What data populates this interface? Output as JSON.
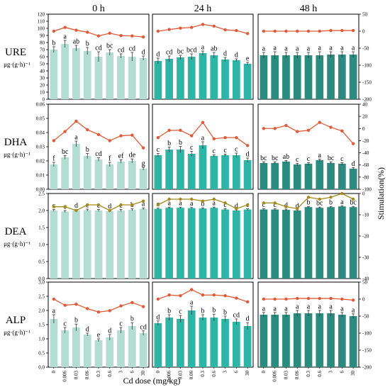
{
  "chart_data": {
    "type": "bar",
    "columns": [
      "0 h",
      "24 h",
      "48 h"
    ],
    "x_categories": [
      "0",
      "0.006",
      "0.03",
      "0.06",
      "0.3",
      "0.6",
      "3",
      "6",
      "30"
    ],
    "xlabel": "Cd dose (mg/kg)",
    "right_axis_label": "Stimulation(%)",
    "colors": [
      "#b4ddd2",
      "#2fb5a5",
      "#2a8c80"
    ],
    "line_colors": {
      "red": "#e05a38",
      "olive": "#a58a1e"
    },
    "rows": [
      {
        "name": "URE",
        "unit": "μg·(g·h)⁻¹",
        "left_ticks": [
          "0",
          "10",
          "20",
          "30",
          "40",
          "50",
          "60",
          "70",
          "80",
          "90",
          "100",
          "110",
          "120"
        ],
        "right_ticks": [
          "50",
          "0",
          "-50",
          "-100",
          "-150",
          "-200"
        ],
        "ylim": [
          0,
          120
        ],
        "y2lim": [
          -200,
          50
        ],
        "line_color": "red",
        "panels": [
          {
            "values": [
              70,
              78,
              72,
              68,
              60,
              66,
              61,
              60,
              58
            ],
            "errors": [
              4,
              5,
              4,
              5,
              7,
              4,
              3,
              6,
              3
            ],
            "letters": [
              "b",
              "a",
              "ab",
              "b",
              "cd",
              "bc",
              "cd",
              "cd",
              "d"
            ],
            "stimulation": [
              0,
              11,
              3,
              -3,
              -14,
              -6,
              -13,
              -14,
              -17
            ]
          },
          {
            "values": [
              54,
              57,
              59,
              60,
              65,
              62,
              56,
              55,
              50
            ],
            "errors": [
              4,
              4,
              3,
              4,
              3,
              4,
              3,
              2,
              2
            ],
            "letters": [
              "d",
              "cd",
              "bc",
              "bcd",
              "a",
              "ab",
              "d",
              "d",
              "e"
            ],
            "stimulation": [
              0,
              5,
              9,
              11,
              20,
              15,
              4,
              2,
              -7
            ]
          },
          {
            "values": [
              62,
              62,
              62,
              62,
              62,
              62,
              63,
              63,
              63
            ],
            "errors": [
              4,
              5,
              4,
              4,
              4,
              5,
              4,
              4,
              4
            ],
            "letters": [
              "a",
              "a",
              "a",
              "a",
              "a",
              "a",
              "a",
              "a",
              "a"
            ],
            "stimulation": [
              0,
              0,
              0,
              0,
              0,
              0,
              2,
              2,
              2
            ]
          }
        ]
      },
      {
        "name": "DHA",
        "unit": "μg·(g·h)⁻¹",
        "left_ticks": [
          "0.00",
          "0.01",
          "0.02",
          "0.03",
          "0.04",
          "0.05",
          "0.06"
        ],
        "right_ticks": [
          "40",
          "20",
          "0",
          "-20",
          "-40",
          "-60",
          "-80",
          "-100"
        ],
        "ylim": [
          0,
          0.06
        ],
        "y2lim": [
          -100,
          40
        ],
        "line_color": "red",
        "panels": [
          {
            "values": [
              0.0175,
              0.0225,
              0.032,
              0.0235,
              0.021,
              0.0175,
              0.0195,
              0.02,
              0.0145
            ],
            "errors": [
              0.0015,
              0.0012,
              0.002,
              0.0018,
              0.0012,
              0.0015,
              0.0012,
              0.0014,
              0.001
            ],
            "letters": [
              "f",
              "bc",
              "a",
              "b",
              "cd",
              "f",
              "ef",
              "de",
              "g"
            ],
            "stimulation": [
              -20,
              -5,
              12,
              -2,
              -10,
              -20,
              -12,
              -11,
              -32
            ]
          },
          {
            "values": [
              0.024,
              0.028,
              0.028,
              0.025,
              0.031,
              0.0235,
              0.024,
              0.024,
              0.0205
            ],
            "errors": [
              0.0012,
              0.0018,
              0.0022,
              0.0018,
              0.0025,
              0.0008,
              0.0008,
              0.0015,
              0.0015
            ],
            "letters": [
              "c",
              "b",
              "b",
              "c",
              "a",
              "c",
              "c",
              "c",
              "d"
            ],
            "stimulation": [
              -15,
              -3,
              -3,
              -12,
              10,
              -17,
              -15,
              -15,
              -28
            ]
          },
          {
            "values": [
              0.0185,
              0.0185,
              0.0195,
              0.0175,
              0.018,
              0.0205,
              0.0185,
              0.018,
              0.0145
            ],
            "errors": [
              0.0008,
              0.0008,
              0.0008,
              0.0008,
              0.0008,
              0.0008,
              0.0008,
              0.0008,
              0.0008
            ],
            "letters": [
              "bc",
              "bc",
              "ab",
              "c",
              "c",
              "a",
              "bc",
              "c",
              "d"
            ],
            "stimulation": [
              0,
              0,
              5,
              -5,
              -3,
              10,
              2,
              -4,
              -25
            ]
          }
        ]
      },
      {
        "name": "DEA",
        "unit": "μg·(g·h)⁻¹",
        "left_ticks": [
          "0.0",
          "0.5",
          "1.0",
          "1.5",
          "2.0",
          "2.5"
        ],
        "right_ticks": [
          "0",
          "-10",
          "-20",
          "-30",
          "-40"
        ],
        "ylim": [
          0,
          2.5
        ],
        "y2lim": [
          -40,
          5
        ],
        "line_color": "olive",
        "panels": [
          {
            "values": [
              2.0,
              1.97,
              2.0,
              2.01,
              2.0,
              1.98,
              2.0,
              2.02,
              2.05
            ],
            "errors": [
              0.03,
              0.03,
              0.03,
              0.03,
              0.03,
              0.03,
              0.03,
              0.03,
              0.03
            ],
            "letters": [
              "c",
              "c",
              "d",
              "c",
              "c",
              "d",
              "c",
              "b",
              "a"
            ],
            "stimulation": [
              -2,
              -2,
              -4,
              -1,
              -1,
              -4,
              -1,
              -1,
              1
            ]
          },
          {
            "values": [
              2.05,
              2.08,
              2.08,
              2.07,
              2.06,
              2.08,
              2.03,
              2.0,
              2.03
            ],
            "errors": [
              0.02,
              0.02,
              0.02,
              0.02,
              0.02,
              0.02,
              0.02,
              0.02,
              0.02
            ],
            "letters": [
              "c",
              "a",
              "a",
              "a",
              "b",
              "a",
              "c",
              "d",
              "c"
            ],
            "stimulation": [
              -1,
              2,
              2,
              2,
              1,
              2,
              0,
              -3,
              -1
            ]
          },
          {
            "values": [
              2.03,
              2.03,
              2.02,
              2.0,
              2.1,
              2.08,
              2.1,
              2.12,
              2.1
            ],
            "errors": [
              0.02,
              0.02,
              0.02,
              0.02,
              0.02,
              0.02,
              0.02,
              0.02,
              0.02
            ],
            "letters": [
              "c",
              "c",
              "d",
              "d",
              "b",
              "bc",
              "b",
              "a",
              "bc"
            ],
            "stimulation": [
              0,
              0,
              -2,
              -3,
              3,
              2,
              3,
              5,
              2
            ]
          }
        ]
      },
      {
        "name": "ALP",
        "unit": "μg·(g·h)⁻¹",
        "left_ticks": [
          "0.0",
          "0.5",
          "1.0",
          "1.5",
          "2.0",
          "2.5",
          "3.0"
        ],
        "right_ticks": [
          "50",
          "0",
          "-50",
          "-100",
          "-150",
          "-200"
        ],
        "ylim": [
          0,
          3
        ],
        "y2lim": [
          -200,
          50
        ],
        "line_color": "red",
        "panels": [
          {
            "values": [
              1.7,
              1.3,
              1.4,
              1.15,
              0.95,
              1.05,
              1.3,
              1.45,
              1.2
            ],
            "errors": [
              0.15,
              0.1,
              0.12,
              0.05,
              0.05,
              0.1,
              0.1,
              0.12,
              0.08
            ],
            "letters": [
              "a",
              "c",
              "b",
              "d",
              "e",
              "d",
              "c",
              "b",
              "cd"
            ],
            "stimulation": [
              0,
              -18,
              -15,
              -28,
              -38,
              -34,
              -20,
              -10,
              -22
            ]
          },
          {
            "values": [
              1.55,
              1.75,
              1.7,
              2.0,
              1.75,
              1.75,
              1.7,
              1.6,
              1.45
            ],
            "errors": [
              0.08,
              0.1,
              0.12,
              0.15,
              0.1,
              0.12,
              0.1,
              0.1,
              0.12
            ],
            "letters": [
              "d",
              "b",
              "c",
              "a",
              "b",
              "b",
              "b",
              "cd",
              "d"
            ],
            "stimulation": [
              0,
              12,
              10,
              28,
              12,
              12,
              10,
              3,
              -8
            ]
          },
          {
            "values": [
              1.85,
              1.85,
              1.85,
              1.9,
              1.9,
              1.9,
              1.9,
              1.85,
              1.8
            ],
            "errors": [
              0.08,
              0.08,
              0.08,
              0.1,
              0.1,
              0.1,
              0.1,
              0.08,
              0.08
            ],
            "letters": [
              "a",
              "a",
              "a",
              "a",
              "a",
              "a",
              "a",
              "a",
              "a"
            ],
            "stimulation": [
              0,
              0,
              0,
              2,
              2,
              2,
              2,
              0,
              -3
            ]
          }
        ]
      }
    ]
  }
}
